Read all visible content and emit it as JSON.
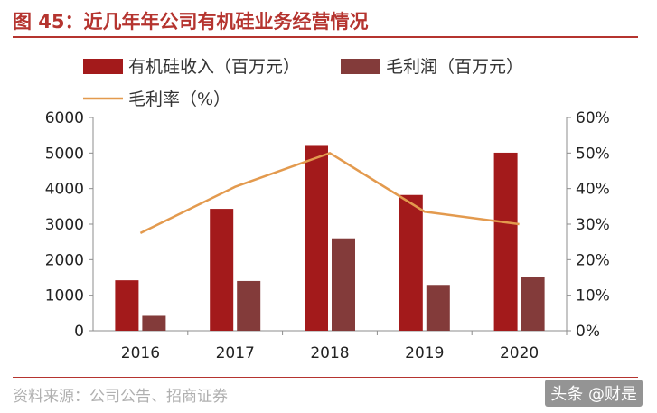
{
  "header": {
    "title": "图 45：近几年年公司有机硅业务经营情况"
  },
  "footer": {
    "source": "资料来源：公司公告、招商证券",
    "watermark": "头条 @财是"
  },
  "colors": {
    "revenue": "#a31a1b",
    "profit": "#833b3a",
    "margin": "#e39a4e",
    "accent": "#b5342f"
  },
  "chart_data": {
    "type": "bar",
    "categories": [
      "2016",
      "2017",
      "2018",
      "2019",
      "2020"
    ],
    "series": [
      {
        "name": "有机硅收入（百万元）",
        "kind": "bar",
        "axis": "left",
        "values": [
          1420,
          3430,
          5200,
          3820,
          5010
        ]
      },
      {
        "name": "毛利润（百万元）",
        "kind": "bar",
        "axis": "left",
        "values": [
          420,
          1400,
          2600,
          1290,
          1520
        ]
      },
      {
        "name": "毛利率（%）",
        "kind": "line",
        "axis": "right",
        "values": [
          27.5,
          40.5,
          50,
          33.5,
          30
        ]
      }
    ],
    "ylim_left": [
      0,
      6000
    ],
    "yticks_left": [
      "0",
      "1000",
      "2000",
      "3000",
      "4000",
      "5000",
      "6000"
    ],
    "ylim_right": [
      0,
      60
    ],
    "yticks_right": [
      "0%",
      "10%",
      "20%",
      "30%",
      "40%",
      "50%",
      "60%"
    ],
    "legend_position": "top",
    "grid": false
  }
}
